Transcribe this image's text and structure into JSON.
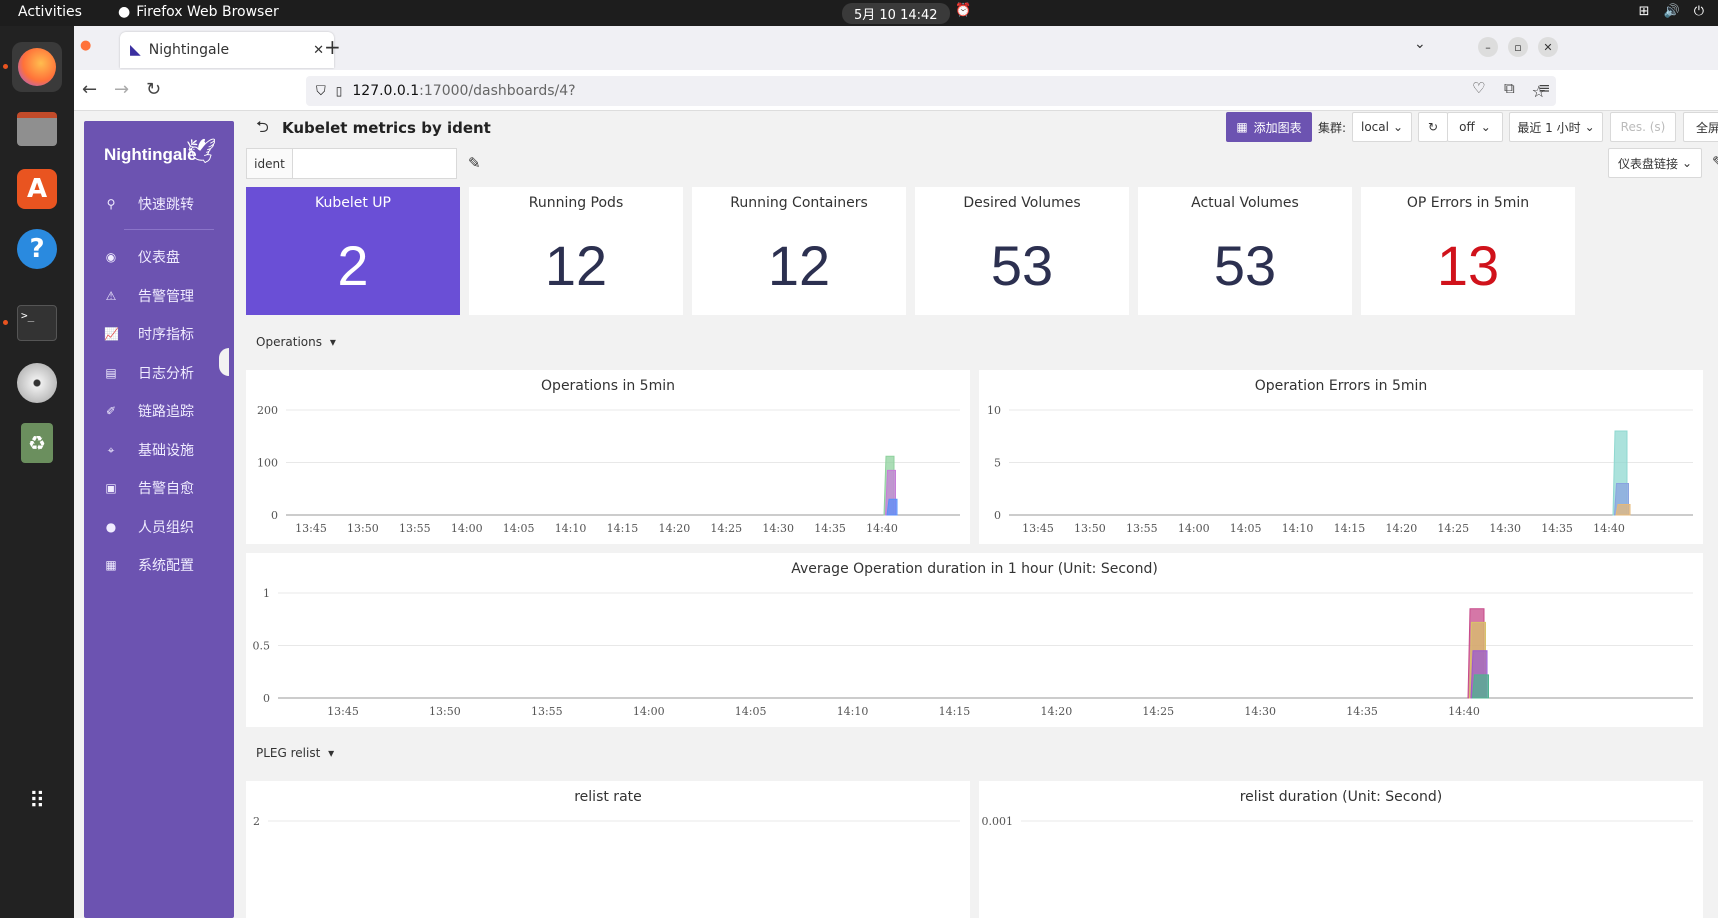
{
  "system": {
    "activities": "Activities",
    "app_name": "Firefox Web Browser",
    "clock": "5月 10  14:42"
  },
  "browser": {
    "tab_title": "Nightingale",
    "url_host": "127.0.0.1",
    "url_path": ":17000/dashboards/4?"
  },
  "sidebar": {
    "logo": "Nightingale",
    "items": [
      {
        "label": "快速跳转",
        "icon": "search-icon"
      },
      {
        "label": "仪表盘",
        "icon": "dashboard-icon"
      },
      {
        "label": "告警管理",
        "icon": "alarm-icon"
      },
      {
        "label": "时序指标",
        "icon": "chart-icon"
      },
      {
        "label": "日志分析",
        "icon": "log-icon"
      },
      {
        "label": "链路追踪",
        "icon": "trace-icon"
      },
      {
        "label": "基础设施",
        "icon": "infra-icon"
      },
      {
        "label": "告警自愈",
        "icon": "terminal-icon"
      },
      {
        "label": "人员组织",
        "icon": "user-icon"
      },
      {
        "label": "系统配置",
        "icon": "settings-icon"
      }
    ]
  },
  "header": {
    "title": "Kubelet metrics by ident",
    "add_chart": "添加图表",
    "cluster_label": "集群:",
    "cluster_value": "local",
    "refresh_value": "off",
    "time_range": "最近 1 小时",
    "res_placeholder": "Res. (s)",
    "fullscreen": "全屏",
    "dashboard_links": "仪表盘链接"
  },
  "variables": {
    "ident_label": "ident",
    "ident_value": ""
  },
  "stats": [
    {
      "title": "Kubelet UP",
      "value": "2"
    },
    {
      "title": "Running Pods",
      "value": "12"
    },
    {
      "title": "Running Containers",
      "value": "12"
    },
    {
      "title": "Desired Volumes",
      "value": "53"
    },
    {
      "title": "Actual Volumes",
      "value": "53"
    },
    {
      "title": "OP Errors in 5min",
      "value": "13"
    }
  ],
  "groups": {
    "operations": "Operations",
    "pleg": "PLEG relist"
  },
  "panels": {
    "ops": "Operations in 5min",
    "op_errors": "Operation Errors in 5min",
    "avg_duration": "Average Operation duration in 1 hour (Unit: Second)",
    "relist_rate": "relist rate",
    "relist_duration": "relist duration (Unit: Second)"
  },
  "chart_data": [
    {
      "type": "area",
      "title": "Operations in 5min",
      "x": [
        "13:45",
        "13:50",
        "13:55",
        "14:00",
        "14:05",
        "14:10",
        "14:15",
        "14:20",
        "14:25",
        "14:30",
        "14:35",
        "14:40"
      ],
      "yticks": [
        "0",
        "100",
        "200"
      ],
      "ylim": [
        0,
        200
      ],
      "series": [
        {
          "values": [
            0,
            0,
            0,
            0,
            0,
            0,
            0,
            0,
            0,
            0,
            0,
            112
          ],
          "color": "#8fd19e"
        },
        {
          "values": [
            0,
            0,
            0,
            0,
            0,
            0,
            0,
            0,
            0,
            0,
            0,
            85
          ],
          "color": "#c77dd8"
        },
        {
          "values": [
            0,
            0,
            0,
            0,
            0,
            0,
            0,
            0,
            0,
            0,
            0,
            30
          ],
          "color": "#5b8ff9"
        }
      ]
    },
    {
      "type": "area",
      "title": "Operation Errors in 5min",
      "x": [
        "13:45",
        "13:50",
        "13:55",
        "14:00",
        "14:05",
        "14:10",
        "14:15",
        "14:20",
        "14:25",
        "14:30",
        "14:35",
        "14:40"
      ],
      "yticks": [
        "0",
        "5",
        "10"
      ],
      "ylim": [
        0,
        10
      ],
      "series": [
        {
          "values": [
            0,
            0,
            0,
            0,
            0,
            0,
            0,
            0,
            0,
            0,
            0,
            8
          ],
          "color": "#8fd8d0"
        },
        {
          "values": [
            0,
            0,
            0,
            0,
            0,
            0,
            0,
            0,
            0,
            0,
            0,
            3
          ],
          "color": "#8aa3e0"
        },
        {
          "values": [
            0,
            0,
            0,
            0,
            0,
            0,
            0,
            0,
            0,
            0,
            0,
            1
          ],
          "color": "#e6b87a"
        }
      ]
    },
    {
      "type": "area",
      "title": "Average Operation duration in 1 hour (Unit: Second)",
      "x": [
        "13:45",
        "13:50",
        "13:55",
        "14:00",
        "14:05",
        "14:10",
        "14:15",
        "14:20",
        "14:25",
        "14:30",
        "14:35",
        "14:40"
      ],
      "yticks": [
        "0",
        "0.5",
        "1"
      ],
      "ylim": [
        0,
        1
      ],
      "series": [
        {
          "values": [
            0,
            0,
            0,
            0,
            0,
            0,
            0,
            0,
            0,
            0,
            0,
            0.85
          ],
          "color": "#c74a8a"
        },
        {
          "values": [
            0,
            0,
            0,
            0,
            0,
            0,
            0,
            0,
            0,
            0,
            0,
            0.72
          ],
          "color": "#d8c26a"
        },
        {
          "values": [
            0,
            0,
            0,
            0,
            0,
            0,
            0,
            0,
            0,
            0,
            0,
            0.45
          ],
          "color": "#9b59d0"
        },
        {
          "values": [
            0,
            0,
            0,
            0,
            0,
            0,
            0,
            0,
            0,
            0,
            0,
            0.22
          ],
          "color": "#4fb38f"
        }
      ]
    },
    {
      "type": "line",
      "title": "relist rate",
      "yticks": [
        "2"
      ]
    },
    {
      "type": "line",
      "title": "relist duration (Unit: Second)",
      "yticks": [
        "0.001"
      ]
    }
  ]
}
